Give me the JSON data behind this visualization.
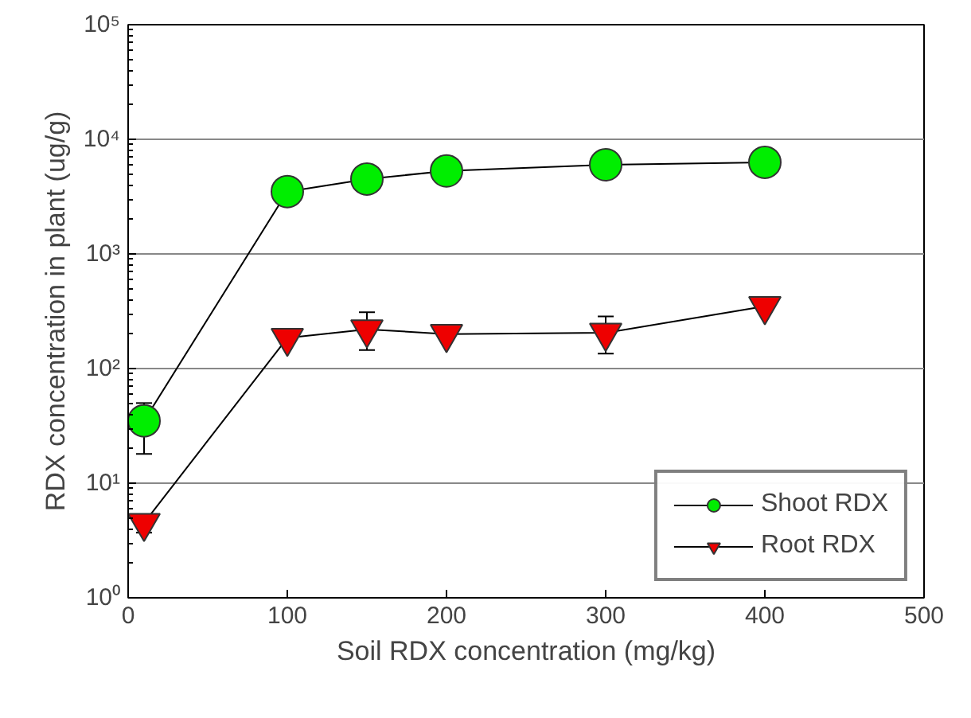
{
  "chart_data": {
    "type": "line",
    "xlabel": "Soil RDX concentration (mg/kg)",
    "ylabel": "RDX concentration in plant (ug/g)",
    "x": [
      10,
      100,
      150,
      200,
      300,
      400
    ],
    "series": [
      {
        "name": "Shoot RDX",
        "color": "#00ee00",
        "marker": "circle",
        "values": [
          35,
          3500,
          4500,
          5300,
          6000,
          6300
        ],
        "errors": [
          [
            18,
            50
          ],
          null,
          null,
          null,
          null,
          null
        ]
      },
      {
        "name": "Root RDX",
        "color": "#ee0000",
        "marker": "triangle",
        "values": [
          4.5,
          185,
          220,
          200,
          205,
          350
        ],
        "errors": [
          [
            3.7,
            5.3
          ],
          null,
          [
            145,
            310
          ],
          null,
          [
            135,
            285
          ],
          null
        ]
      }
    ],
    "xlim": [
      0,
      500
    ],
    "xticks": [
      0,
      100,
      200,
      300,
      400,
      500
    ],
    "ylim": [
      1,
      100000
    ],
    "yticks": [
      {
        "value": 1,
        "label": "10⁰"
      },
      {
        "value": 10,
        "label": "10¹"
      },
      {
        "value": 100,
        "label": "10²"
      },
      {
        "value": 1000,
        "label": "10³"
      },
      {
        "value": 10000,
        "label": "10⁴"
      },
      {
        "value": 100000,
        "label": "10⁵"
      }
    ],
    "log": "y",
    "grid": "y",
    "legend": "bottom right"
  }
}
